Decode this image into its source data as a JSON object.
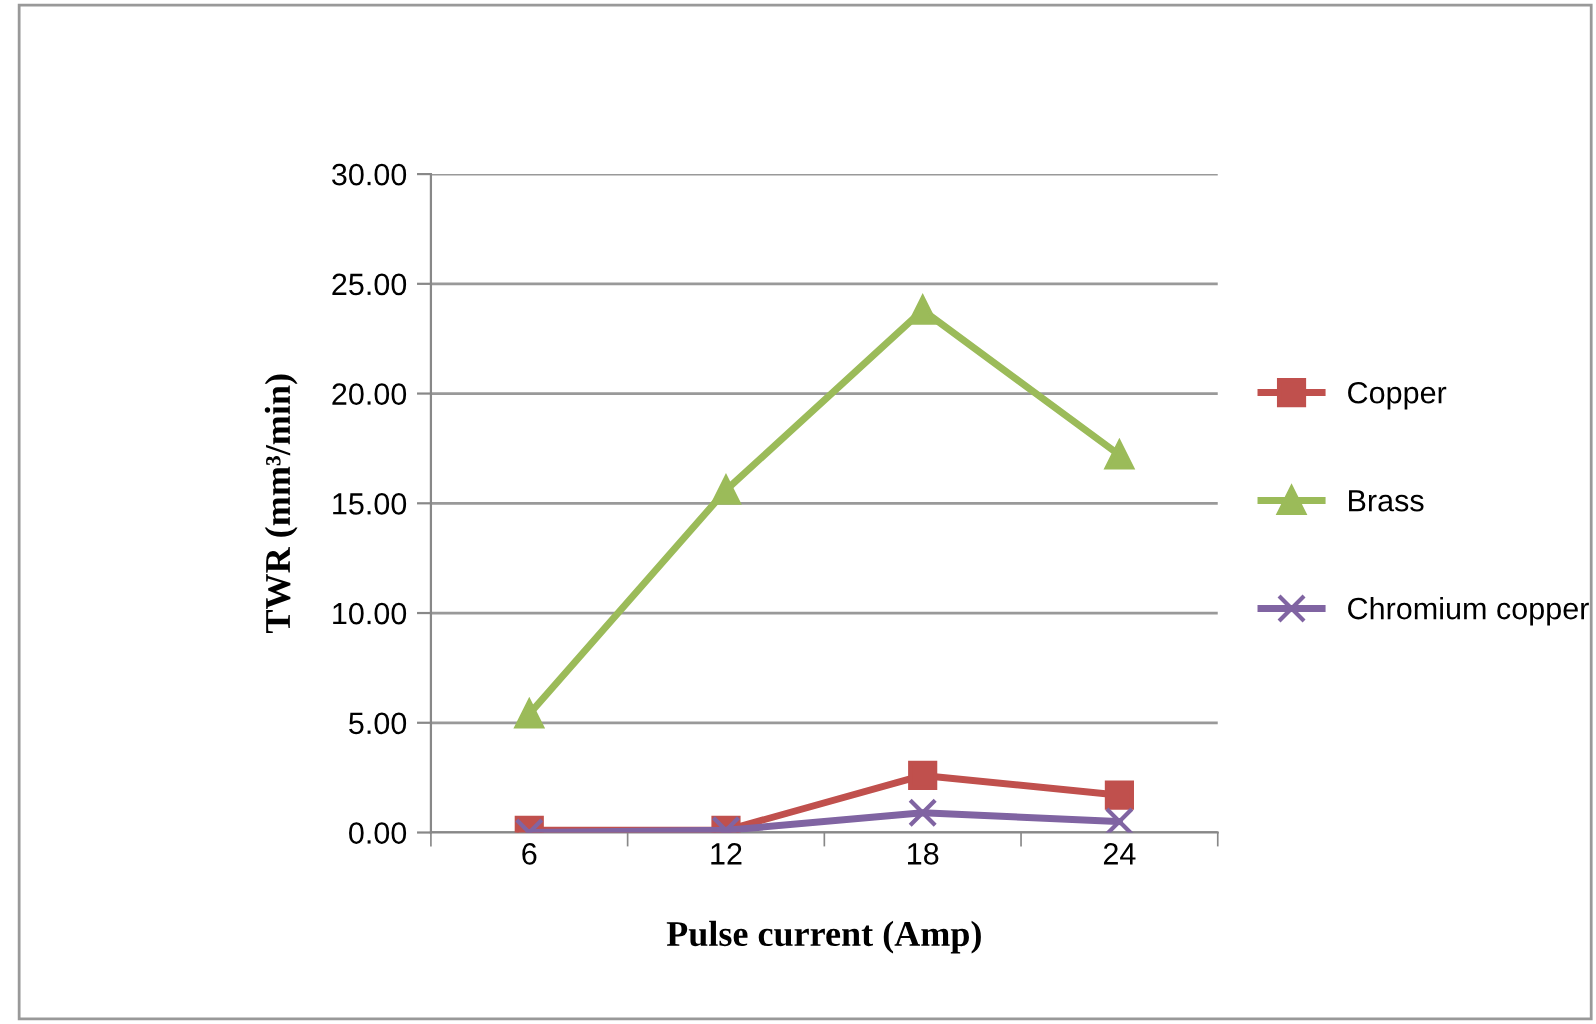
{
  "chart_data": {
    "type": "line",
    "xlabel": "Pulse current (Amp)",
    "ylabel": "TWR (mm³/min)",
    "categories": [
      "6",
      "12",
      "18",
      "24"
    ],
    "series": [
      {
        "name": "Copper",
        "color": "#c0504d",
        "marker": "square",
        "values": [
          0.1,
          0.1,
          2.6,
          1.7
        ]
      },
      {
        "name": "Brass",
        "color": "#9bbb59",
        "marker": "triangle",
        "values": [
          5.4,
          15.6,
          23.8,
          17.2
        ]
      },
      {
        "name": "Chromium copper",
        "color": "#8064a2",
        "marker": "cross",
        "values": [
          0.0,
          0.1,
          0.9,
          0.5
        ]
      }
    ],
    "ylim": [
      0,
      30
    ],
    "yticks": [
      {
        "value": 0,
        "label": "0.00"
      },
      {
        "value": 5,
        "label": "5.00"
      },
      {
        "value": 10,
        "label": "10.00"
      },
      {
        "value": 15,
        "label": "15.00"
      },
      {
        "value": 20,
        "label": "20.00"
      },
      {
        "value": 25,
        "label": "25.00"
      },
      {
        "value": 30,
        "label": "30.00"
      }
    ],
    "grid": "y",
    "legend": "right",
    "line_style": "solid"
  }
}
